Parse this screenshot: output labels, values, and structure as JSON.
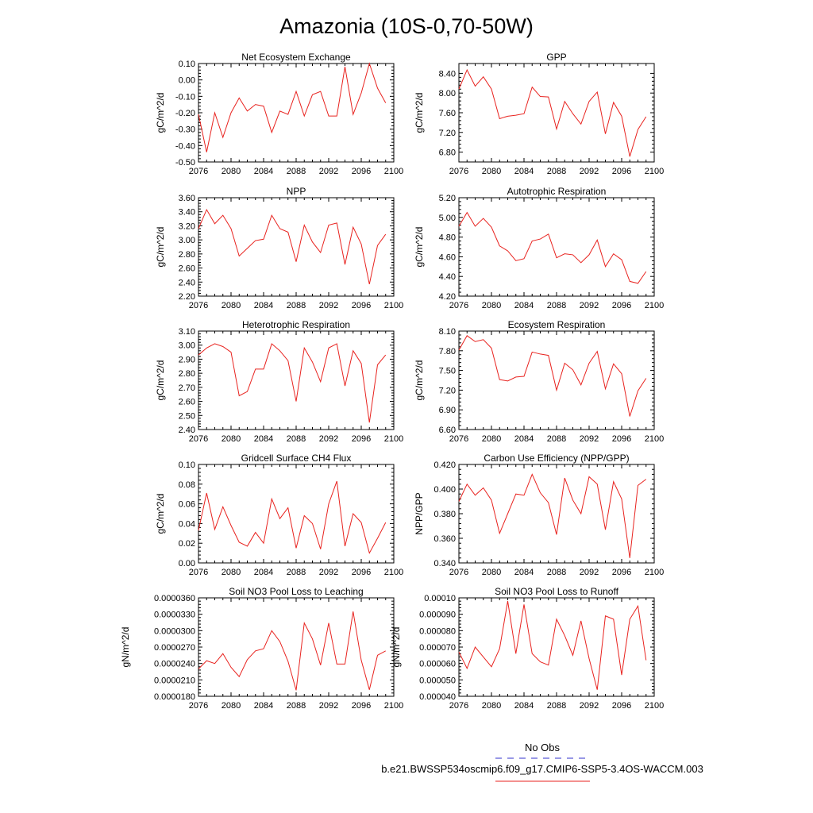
{
  "page": {
    "title": "Amazonia (10S-0,70-50W)"
  },
  "legend": {
    "entries": [
      {
        "label": "No Obs",
        "color": "#5a5ad6",
        "style": "dashed"
      },
      {
        "label": "b.e21.BWSSP534oscmip6.f09_g17.CMIP6-SSP5-3.4OS-WACCM.003",
        "color": "#e8231f",
        "style": "solid"
      }
    ]
  },
  "chart_data": [
    {
      "type": "line",
      "title": "Net Ecosystem Exchange",
      "ylabel": "gC/m^2/d",
      "xlabel": "",
      "xlim": [
        2076,
        2100
      ],
      "xticks": [
        2076,
        2080,
        2084,
        2088,
        2092,
        2096,
        2100
      ],
      "xtick_labels": [
        "2076",
        "2080",
        "2084",
        "2088",
        "2092",
        "2096",
        "2100"
      ],
      "ylim": [
        -0.5,
        0.1
      ],
      "yticks": [
        -0.5,
        -0.4,
        -0.3,
        -0.2,
        -0.1,
        0.0,
        0.1
      ],
      "ytick_labels": [
        "-0.50",
        "-0.40",
        "-0.30",
        "-0.20",
        "-0.10",
        "0.00",
        "0.10"
      ],
      "x": [
        2076,
        2077,
        2078,
        2079,
        2080,
        2081,
        2082,
        2083,
        2084,
        2085,
        2086,
        2087,
        2088,
        2089,
        2090,
        2091,
        2092,
        2093,
        2094,
        2095,
        2096,
        2097,
        2098,
        2099
      ],
      "series": [
        {
          "name": "b.e21.BWSSP534oscmip6.f09_g17.CMIP6-SSP5-3.4OS-WACCM.003",
          "values": [
            -0.21,
            -0.44,
            -0.2,
            -0.35,
            -0.2,
            -0.11,
            -0.19,
            -0.15,
            -0.16,
            -0.32,
            -0.19,
            -0.21,
            -0.07,
            -0.22,
            -0.09,
            -0.07,
            -0.22,
            -0.22,
            0.08,
            -0.21,
            -0.08,
            0.1,
            -0.05,
            -0.14
          ]
        }
      ]
    },
    {
      "type": "line",
      "title": "GPP",
      "ylabel": "gC/m^2/d",
      "xlabel": "",
      "xlim": [
        2076,
        2100
      ],
      "xticks": [
        2076,
        2080,
        2084,
        2088,
        2092,
        2096,
        2100
      ],
      "xtick_labels": [
        "2076",
        "2080",
        "2084",
        "2088",
        "2092",
        "2096",
        "2100"
      ],
      "ylim": [
        6.6,
        8.6
      ],
      "yticks": [
        6.8,
        7.2,
        7.6,
        8.0,
        8.4
      ],
      "ytick_labels": [
        "6.80",
        "7.20",
        "7.60",
        "8.00",
        "8.40"
      ],
      "x": [
        2076,
        2077,
        2078,
        2079,
        2080,
        2081,
        2082,
        2083,
        2084,
        2085,
        2086,
        2087,
        2088,
        2089,
        2090,
        2091,
        2092,
        2093,
        2094,
        2095,
        2096,
        2097,
        2098,
        2099
      ],
      "series": [
        {
          "name": "b.e21.BWSSP534oscmip6.f09_g17.CMIP6-SSP5-3.4OS-WACCM.003",
          "values": [
            8.08,
            8.47,
            8.14,
            8.33,
            8.08,
            7.48,
            7.53,
            7.55,
            7.58,
            8.12,
            7.93,
            7.92,
            7.27,
            7.83,
            7.58,
            7.37,
            7.83,
            8.02,
            7.17,
            7.81,
            7.53,
            6.71,
            7.26,
            7.52
          ]
        }
      ]
    },
    {
      "type": "line",
      "title": "NPP",
      "ylabel": "gC/m^2/d",
      "xlabel": "",
      "xlim": [
        2076,
        2100
      ],
      "xticks": [
        2076,
        2080,
        2084,
        2088,
        2092,
        2096,
        2100
      ],
      "xtick_labels": [
        "2076",
        "2080",
        "2084",
        "2088",
        "2092",
        "2096",
        "2100"
      ],
      "ylim": [
        2.2,
        3.6
      ],
      "yticks": [
        2.2,
        2.4,
        2.6,
        2.8,
        3.0,
        3.2,
        3.4,
        3.6
      ],
      "ytick_labels": [
        "2.20",
        "2.40",
        "2.60",
        "2.80",
        "3.00",
        "3.20",
        "3.40",
        "3.60"
      ],
      "x": [
        2076,
        2077,
        2078,
        2079,
        2080,
        2081,
        2082,
        2083,
        2084,
        2085,
        2086,
        2087,
        2088,
        2089,
        2090,
        2091,
        2092,
        2093,
        2094,
        2095,
        2096,
        2097,
        2098,
        2099
      ],
      "series": [
        {
          "name": "b.e21.BWSSP534oscmip6.f09_g17.CMIP6-SSP5-3.4OS-WACCM.003",
          "values": [
            3.16,
            3.43,
            3.23,
            3.35,
            3.16,
            2.77,
            2.88,
            2.99,
            3.01,
            3.35,
            3.16,
            3.11,
            2.69,
            3.21,
            2.97,
            2.82,
            3.21,
            3.24,
            2.65,
            3.18,
            2.94,
            2.37,
            2.92,
            3.08
          ]
        }
      ]
    },
    {
      "type": "line",
      "title": "Autotrophic Respiration",
      "ylabel": "gC/m^2/d",
      "xlabel": "",
      "xlim": [
        2076,
        2100
      ],
      "xticks": [
        2076,
        2080,
        2084,
        2088,
        2092,
        2096,
        2100
      ],
      "xtick_labels": [
        "2076",
        "2080",
        "2084",
        "2088",
        "2092",
        "2096",
        "2100"
      ],
      "ylim": [
        4.2,
        5.2
      ],
      "yticks": [
        4.2,
        4.4,
        4.6,
        4.8,
        5.0,
        5.2
      ],
      "ytick_labels": [
        "4.20",
        "4.40",
        "4.60",
        "4.80",
        "5.00",
        "5.20"
      ],
      "x": [
        2076,
        2077,
        2078,
        2079,
        2080,
        2081,
        2082,
        2083,
        2084,
        2085,
        2086,
        2087,
        2088,
        2089,
        2090,
        2091,
        2092,
        2093,
        2094,
        2095,
        2096,
        2097,
        2098,
        2099
      ],
      "series": [
        {
          "name": "b.e21.BWSSP534oscmip6.f09_g17.CMIP6-SSP5-3.4OS-WACCM.003",
          "values": [
            4.91,
            5.05,
            4.91,
            4.99,
            4.9,
            4.71,
            4.66,
            4.56,
            4.58,
            4.76,
            4.78,
            4.83,
            4.59,
            4.63,
            4.62,
            4.54,
            4.62,
            4.77,
            4.5,
            4.63,
            4.57,
            4.35,
            4.33,
            4.45
          ]
        }
      ]
    },
    {
      "type": "line",
      "title": "Heterotrophic Respiration",
      "ylabel": "gC/m^2/d",
      "xlabel": "",
      "xlim": [
        2076,
        2100
      ],
      "xticks": [
        2076,
        2080,
        2084,
        2088,
        2092,
        2096,
        2100
      ],
      "xtick_labels": [
        "2076",
        "2080",
        "2084",
        "2088",
        "2092",
        "2096",
        "2100"
      ],
      "ylim": [
        2.4,
        3.1
      ],
      "yticks": [
        2.4,
        2.5,
        2.6,
        2.7,
        2.8,
        2.9,
        3.0,
        3.1
      ],
      "ytick_labels": [
        "2.40",
        "2.50",
        "2.60",
        "2.70",
        "2.80",
        "2.90",
        "3.00",
        "3.10"
      ],
      "x": [
        2076,
        2077,
        2078,
        2079,
        2080,
        2081,
        2082,
        2083,
        2084,
        2085,
        2086,
        2087,
        2088,
        2089,
        2090,
        2091,
        2092,
        2093,
        2094,
        2095,
        2096,
        2097,
        2098,
        2099
      ],
      "series": [
        {
          "name": "b.e21.BWSSP534oscmip6.f09_g17.CMIP6-SSP5-3.4OS-WACCM.003",
          "values": [
            2.93,
            2.98,
            3.01,
            2.99,
            2.95,
            2.64,
            2.67,
            2.83,
            2.83,
            3.01,
            2.96,
            2.89,
            2.6,
            2.98,
            2.88,
            2.74,
            2.98,
            3.01,
            2.71,
            2.96,
            2.87,
            2.45,
            2.86,
            2.93
          ]
        }
      ]
    },
    {
      "type": "line",
      "title": "Ecosystem Respiration",
      "ylabel": "gC/m^2/d",
      "xlabel": "",
      "xlim": [
        2076,
        2100
      ],
      "xticks": [
        2076,
        2080,
        2084,
        2088,
        2092,
        2096,
        2100
      ],
      "xtick_labels": [
        "2076",
        "2080",
        "2084",
        "2088",
        "2092",
        "2096",
        "2100"
      ],
      "ylim": [
        6.6,
        8.1
      ],
      "yticks": [
        6.6,
        6.9,
        7.2,
        7.5,
        7.8,
        8.1
      ],
      "ytick_labels": [
        "6.60",
        "6.90",
        "7.20",
        "7.50",
        "7.80",
        "8.10"
      ],
      "x": [
        2076,
        2077,
        2078,
        2079,
        2080,
        2081,
        2082,
        2083,
        2084,
        2085,
        2086,
        2087,
        2088,
        2089,
        2090,
        2091,
        2092,
        2093,
        2094,
        2095,
        2096,
        2097,
        2098,
        2099
      ],
      "series": [
        {
          "name": "b.e21.BWSSP534oscmip6.f09_g17.CMIP6-SSP5-3.4OS-WACCM.003",
          "values": [
            7.81,
            8.03,
            7.94,
            7.97,
            7.84,
            7.36,
            7.34,
            7.4,
            7.41,
            7.78,
            7.75,
            7.73,
            7.2,
            7.61,
            7.51,
            7.28,
            7.61,
            7.79,
            7.22,
            7.6,
            7.45,
            6.8,
            7.19,
            7.38
          ]
        }
      ]
    },
    {
      "type": "line",
      "title": "Gridcell Surface CH4 Flux",
      "ylabel": "gC/m^2/d",
      "xlabel": "",
      "xlim": [
        2076,
        2100
      ],
      "xticks": [
        2076,
        2080,
        2084,
        2088,
        2092,
        2096,
        2100
      ],
      "xtick_labels": [
        "2076",
        "2080",
        "2084",
        "2088",
        "2092",
        "2096",
        "2100"
      ],
      "ylim": [
        0.0,
        0.1
      ],
      "yticks": [
        0.0,
        0.02,
        0.04,
        0.06,
        0.08,
        0.1
      ],
      "ytick_labels": [
        "0.00",
        "0.02",
        "0.04",
        "0.06",
        "0.08",
        "0.10"
      ],
      "x": [
        2076,
        2077,
        2078,
        2079,
        2080,
        2081,
        2082,
        2083,
        2084,
        2085,
        2086,
        2087,
        2088,
        2089,
        2090,
        2091,
        2092,
        2093,
        2094,
        2095,
        2096,
        2097,
        2098,
        2099
      ],
      "series": [
        {
          "name": "b.e21.BWSSP534oscmip6.f09_g17.CMIP6-SSP5-3.4OS-WACCM.003",
          "values": [
            0.033,
            0.071,
            0.034,
            0.057,
            0.038,
            0.021,
            0.017,
            0.031,
            0.02,
            0.065,
            0.045,
            0.056,
            0.015,
            0.048,
            0.04,
            0.014,
            0.06,
            0.083,
            0.017,
            0.05,
            0.041,
            0.01,
            0.025,
            0.041
          ]
        }
      ]
    },
    {
      "type": "line",
      "title": "Carbon Use Efficiency (NPP/GPP)",
      "ylabel": "NPP/GPP",
      "xlabel": "",
      "xlim": [
        2076,
        2100
      ],
      "xticks": [
        2076,
        2080,
        2084,
        2088,
        2092,
        2096,
        2100
      ],
      "xtick_labels": [
        "2076",
        "2080",
        "2084",
        "2088",
        "2092",
        "2096",
        "2100"
      ],
      "ylim": [
        0.34,
        0.42
      ],
      "yticks": [
        0.34,
        0.36,
        0.38,
        0.4,
        0.42
      ],
      "ytick_labels": [
        "0.340",
        "0.360",
        "0.380",
        "0.400",
        "0.420"
      ],
      "x": [
        2076,
        2077,
        2078,
        2079,
        2080,
        2081,
        2082,
        2083,
        2084,
        2085,
        2086,
        2087,
        2088,
        2089,
        2090,
        2091,
        2092,
        2093,
        2094,
        2095,
        2096,
        2097,
        2098,
        2099
      ],
      "series": [
        {
          "name": "b.e21.BWSSP534oscmip6.f09_g17.CMIP6-SSP5-3.4OS-WACCM.003",
          "values": [
            0.39,
            0.404,
            0.395,
            0.401,
            0.391,
            0.364,
            0.38,
            0.396,
            0.395,
            0.412,
            0.397,
            0.389,
            0.363,
            0.409,
            0.391,
            0.38,
            0.41,
            0.404,
            0.367,
            0.406,
            0.392,
            0.344,
            0.403,
            0.408
          ]
        }
      ]
    },
    {
      "type": "line",
      "title": "Soil NO3 Pool Loss to Leaching",
      "ylabel": "gN/m^2/d",
      "xlabel": "",
      "xlim": [
        2076,
        2100
      ],
      "xticks": [
        2076,
        2080,
        2084,
        2088,
        2092,
        2096,
        2100
      ],
      "xtick_labels": [
        "2076",
        "2080",
        "2084",
        "2088",
        "2092",
        "2096",
        "2100"
      ],
      "ylim": [
        1.8e-05,
        3.6e-05
      ],
      "yticks": [
        1.8e-05,
        2.1e-05,
        2.4e-05,
        2.7e-05,
        3e-05,
        3.3e-05,
        3.6e-05
      ],
      "ytick_labels": [
        "0.0000180",
        "0.0000210",
        "0.0000240",
        "0.0000270",
        "0.0000300",
        "0.0000330",
        "0.0000360"
      ],
      "x": [
        2076,
        2077,
        2078,
        2079,
        2080,
        2081,
        2082,
        2083,
        2084,
        2085,
        2086,
        2087,
        2088,
        2089,
        2090,
        2091,
        2092,
        2093,
        2094,
        2095,
        2096,
        2097,
        2098,
        2099
      ],
      "series": [
        {
          "name": "b.e21.BWSSP534oscmip6.f09_g17.CMIP6-SSP5-3.4OS-WACCM.003",
          "values": [
            2.3e-05,
            2.45e-05,
            2.4e-05,
            2.58e-05,
            2.33e-05,
            2.16e-05,
            2.47e-05,
            2.63e-05,
            2.67e-05,
            3e-05,
            2.8e-05,
            2.44e-05,
            1.91e-05,
            3.14e-05,
            2.85e-05,
            2.37e-05,
            3.14e-05,
            2.39e-05,
            2.39e-05,
            3.35e-05,
            2.46e-05,
            1.92e-05,
            2.55e-05,
            2.63e-05
          ]
        }
      ]
    },
    {
      "type": "line",
      "title": "Soil NO3 Pool Loss to Runoff",
      "ylabel": "gN/m^2/d",
      "xlabel": "",
      "xlim": [
        2076,
        2100
      ],
      "xticks": [
        2076,
        2080,
        2084,
        2088,
        2092,
        2096,
        2100
      ],
      "xtick_labels": [
        "2076",
        "2080",
        "2084",
        "2088",
        "2092",
        "2096",
        "2100"
      ],
      "ylim": [
        4e-05,
        0.0001
      ],
      "yticks": [
        4e-05,
        5e-05,
        6e-05,
        7e-05,
        8e-05,
        9e-05,
        0.0001
      ],
      "ytick_labels": [
        "0.000040",
        "0.000050",
        "0.000060",
        "0.000070",
        "0.000080",
        "0.000090",
        "0.00010"
      ],
      "x": [
        2076,
        2077,
        2078,
        2079,
        2080,
        2081,
        2082,
        2083,
        2084,
        2085,
        2086,
        2087,
        2088,
        2089,
        2090,
        2091,
        2092,
        2093,
        2094,
        2095,
        2096,
        2097,
        2098,
        2099
      ],
      "series": [
        {
          "name": "b.e21.BWSSP534oscmip6.f09_g17.CMIP6-SSP5-3.4OS-WACCM.003",
          "values": [
            6.7e-05,
            5.7e-05,
            7e-05,
            6.4e-05,
            5.8e-05,
            6.9e-05,
            9.8e-05,
            6.6e-05,
            9.6e-05,
            6.6e-05,
            6.1e-05,
            5.9e-05,
            8.7e-05,
            7.7e-05,
            6.5e-05,
            8.6e-05,
            6.3e-05,
            4.4e-05,
            8.9e-05,
            8.7e-05,
            5.3e-05,
            8.7e-05,
            9.5e-05,
            6.2e-05
          ]
        }
      ]
    }
  ]
}
